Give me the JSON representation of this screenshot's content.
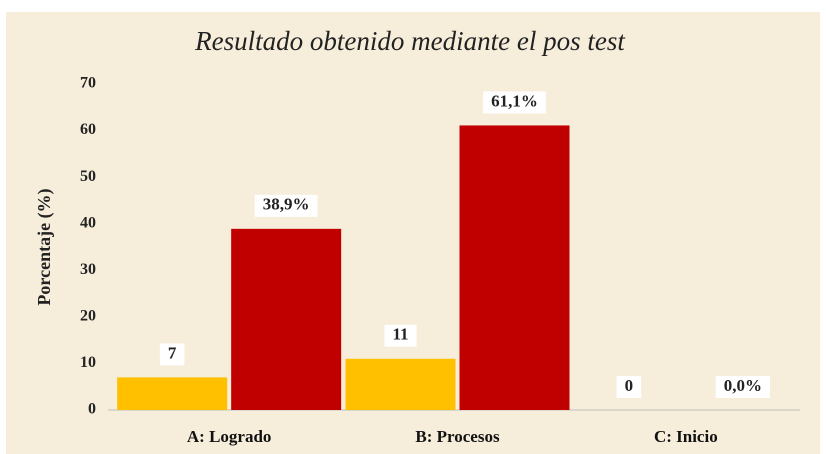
{
  "chart_data": {
    "type": "bar",
    "title": "Resultado obtenido mediante el pos test",
    "y_label": "Porcentaje (%)",
    "categories": [
      "A: Logrado",
      "B: Procesos",
      "C: Inicio"
    ],
    "series": [
      {
        "color": "#ffc000",
        "values": [
          7,
          11,
          0
        ]
      },
      {
        "color": "#c00000",
        "values": [
          38.9,
          61.1,
          0.0
        ],
        "value_labels": [
          "38,9%",
          "61,1%",
          "0,0%"
        ]
      }
    ],
    "ylim": [
      0,
      70
    ],
    "yticks": [
      0,
      10,
      20,
      30,
      40,
      50,
      60,
      70
    ],
    "grid": false
  }
}
